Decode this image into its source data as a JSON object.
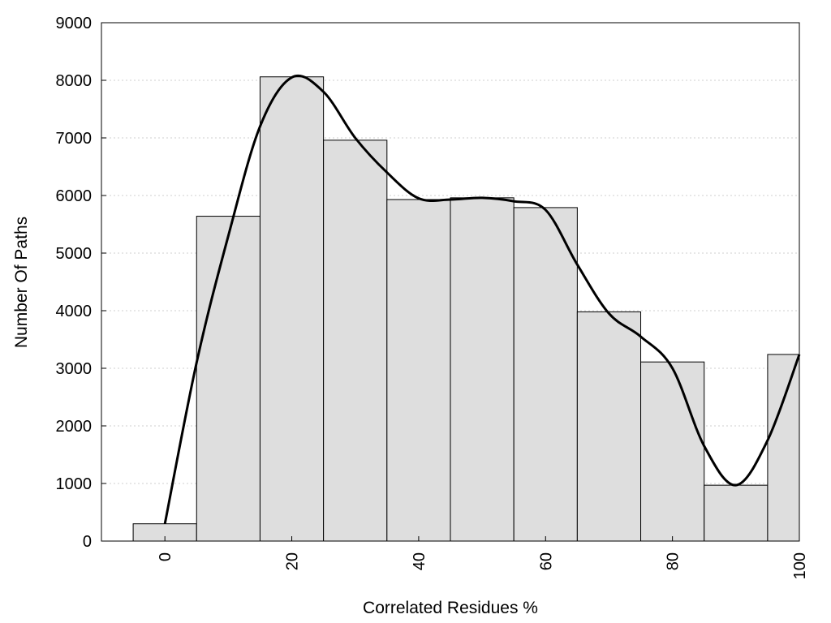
{
  "chart_data": {
    "type": "bar",
    "xlabel": "Correlated Residues %",
    "ylabel": "Number Of Paths",
    "ylim": [
      0,
      9000
    ],
    "xlim": [
      -10,
      100
    ],
    "grid": "horizontal-dotted",
    "legend": "none",
    "bar_width": 10,
    "x": [
      0,
      10,
      20,
      30,
      40,
      50,
      60,
      70,
      80,
      90,
      100
    ],
    "values": [
      300,
      5640,
      8060,
      6960,
      5930,
      5960,
      5790,
      3980,
      3110,
      970,
      3240
    ],
    "xticks": [
      "0",
      "20",
      "40",
      "60",
      "80",
      "100"
    ],
    "yticks": [
      "0",
      "1000",
      "2000",
      "3000",
      "4000",
      "5000",
      "6000",
      "7000",
      "8000",
      "9000"
    ],
    "curve": {
      "x": [
        0,
        5,
        10,
        15,
        20,
        25,
        30,
        35,
        40,
        45,
        50,
        55,
        60,
        65,
        70,
        75,
        80,
        85,
        90,
        95,
        100
      ],
      "y": [
        300,
        3100,
        5300,
        7200,
        8050,
        7800,
        7000,
        6400,
        5950,
        5930,
        5960,
        5900,
        5750,
        4800,
        3950,
        3550,
        3000,
        1650,
        970,
        1750,
        3240
      ]
    },
    "colors": {
      "bar_fill": "#dedede",
      "bar_stroke": "#000000",
      "curve": "#000000",
      "grid": "#cfcfcf"
    }
  }
}
